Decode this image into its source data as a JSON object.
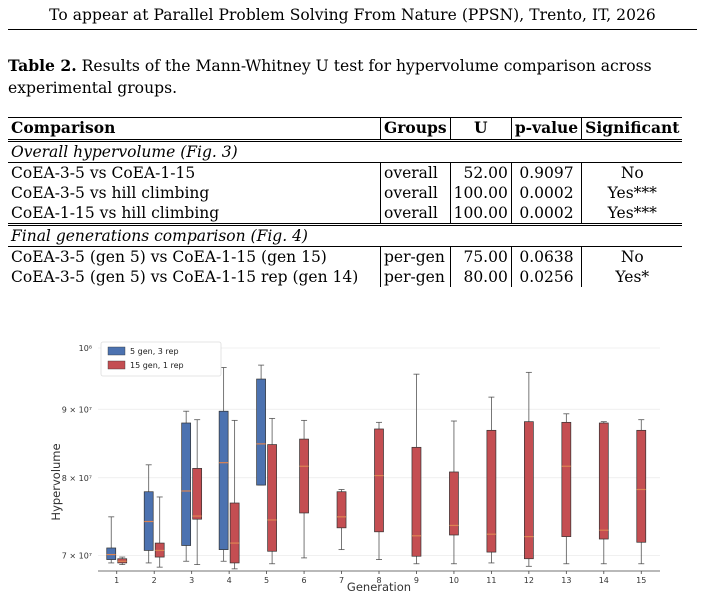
{
  "header": "To appear at Parallel Problem Solving From Nature (PPSN), Trento, IT, 2026",
  "caption": {
    "label": "Table 2.",
    "text": " Results of the Mann-Whitney U test for hypervolume comparison across experimental groups."
  },
  "table": {
    "columns": [
      "Comparison",
      "Groups",
      "U",
      "p-value",
      "Significant"
    ],
    "groups": [
      {
        "title": "Overall hypervolume (Fig. 3)",
        "rows": [
          [
            "CoEA-3-5 vs CoEA-1-15",
            "overall",
            "52.00",
            "0.9097",
            "No"
          ],
          [
            "CoEA-3-5 vs hill climbing",
            "overall",
            "100.00",
            "0.0002",
            "Yes***"
          ],
          [
            "CoEA-1-15 vs hill climbing",
            "overall",
            "100.00",
            "0.0002",
            "Yes***"
          ]
        ]
      },
      {
        "title": "Final generations comparison (Fig. 4)",
        "rows": [
          [
            "CoEA-3-5 (gen 5) vs CoEA-1-15 (gen 15)",
            "per-gen",
            "75.00",
            "0.0638",
            "No"
          ],
          [
            "CoEA-3-5 (gen 5) vs CoEA-1-15 rep (gen 14)",
            "per-gen",
            "80.00",
            "0.0256",
            "Yes*"
          ]
        ]
      }
    ]
  },
  "chart_data": {
    "type": "box",
    "xlabel": "Generation",
    "ylabel": "Hypervolume",
    "yscale": "log",
    "ylim": [
      68500000,
      100000000
    ],
    "yticks": [
      {
        "value": 70000000,
        "label": "7 × 10⁷"
      },
      {
        "value": 80000000,
        "label": "8 × 10⁷"
      },
      {
        "value": 90000000,
        "label": "9 × 10⁷"
      },
      {
        "value": 100000000,
        "label": "10⁸"
      }
    ],
    "grid": true,
    "legend_position": "top-left",
    "categories": [
      "1",
      "2",
      "3",
      "4",
      "5",
      "6",
      "7",
      "8",
      "9",
      "10",
      "11",
      "12",
      "13",
      "14",
      "15"
    ],
    "series": [
      {
        "name": "5 gen, 3 rep",
        "color": "#4c72b0",
        "median_color": "#dd8452",
        "boxes": [
          {
            "x": "1",
            "min": 69100000,
            "q1": 69500000,
            "median": 70100000,
            "q3": 70900000,
            "max": 74800000
          },
          {
            "x": "2",
            "min": 69100000,
            "q1": 70600000,
            "median": 74200000,
            "q3": 78100000,
            "max": 81800000
          },
          {
            "x": "3",
            "min": 69300000,
            "q1": 71200000,
            "median": 78200000,
            "q3": 87900000,
            "max": 89700000
          },
          {
            "x": "4",
            "min": 69300000,
            "q1": 70700000,
            "median": 82100000,
            "q3": 89700000,
            "max": 96700000
          },
          {
            "x": "5",
            "min": 79000000,
            "q1": 79000000,
            "median": 84800000,
            "q3": 94800000,
            "max": 97100000
          }
        ]
      },
      {
        "name": "15 gen, 1 rep",
        "color": "#c44e52",
        "median_color": "#dd8452",
        "boxes": [
          {
            "x": "1",
            "min": 68900000,
            "q1": 69100000,
            "median": 69300000,
            "q3": 69600000,
            "max": 69800000
          },
          {
            "x": "2",
            "min": 68600000,
            "q1": 69800000,
            "median": 70600000,
            "q3": 71500000,
            "max": 77400000
          },
          {
            "x": "3",
            "min": 68900000,
            "q1": 74500000,
            "median": 74900000,
            "q3": 81300000,
            "max": 88400000
          },
          {
            "x": "4",
            "min": 68400000,
            "q1": 69100000,
            "median": 71500000,
            "q3": 76600000,
            "max": 88300000
          },
          {
            "x": "5",
            "min": 69000000,
            "q1": 70500000,
            "median": 74400000,
            "q3": 84700000,
            "max": 88600000
          },
          {
            "x": "6",
            "min": 69700000,
            "q1": 75300000,
            "median": 81600000,
            "q3": 85500000,
            "max": 88300000
          },
          {
            "x": "7",
            "min": 70700000,
            "q1": 73400000,
            "median": 74800000,
            "q3": 78100000,
            "max": 78400000
          },
          {
            "x": "8",
            "min": 69500000,
            "q1": 72900000,
            "median": 80300000,
            "q3": 87000000,
            "max": 88000000
          },
          {
            "x": "9",
            "min": 69000000,
            "q1": 69900000,
            "median": 72400000,
            "q3": 84300000,
            "max": 95600000
          },
          {
            "x": "10",
            "min": 69000000,
            "q1": 72500000,
            "median": 73700000,
            "q3": 80800000,
            "max": 88200000
          },
          {
            "x": "11",
            "min": 69100000,
            "q1": 70400000,
            "median": 72600000,
            "q3": 86800000,
            "max": 91900000
          },
          {
            "x": "12",
            "min": 68700000,
            "q1": 69600000,
            "median": 72300000,
            "q3": 88100000,
            "max": 95900000
          },
          {
            "x": "13",
            "min": 69000000,
            "q1": 72300000,
            "median": 81600000,
            "q3": 88000000,
            "max": 89300000
          },
          {
            "x": "14",
            "min": 69000000,
            "q1": 72000000,
            "median": 73100000,
            "q3": 87900000,
            "max": 88100000
          },
          {
            "x": "15",
            "min": 69000000,
            "q1": 71600000,
            "median": 78400000,
            "q3": 86800000,
            "max": 88400000
          }
        ]
      }
    ]
  }
}
